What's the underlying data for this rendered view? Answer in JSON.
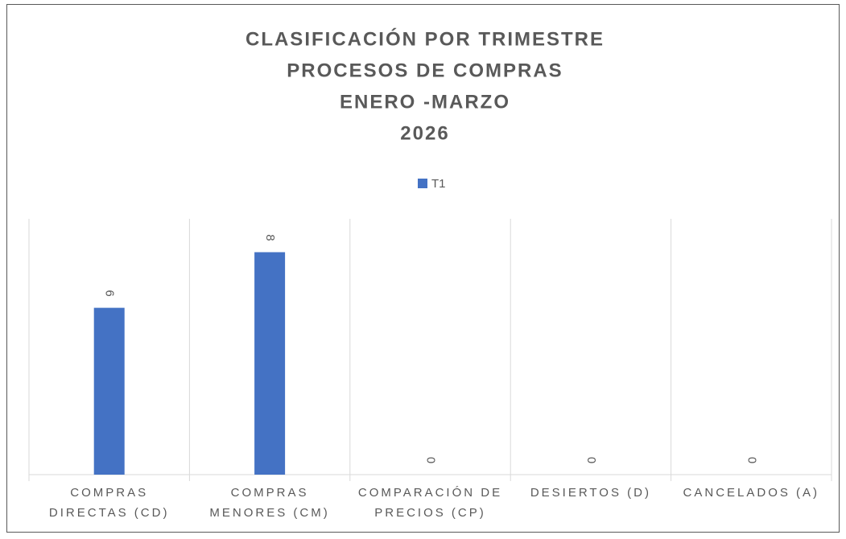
{
  "chart_data": {
    "type": "bar",
    "title": [
      "CLASIFICACIÓN POR TRIMESTRE",
      "PROCESOS DE COMPRAS",
      "ENERO -MARZO",
      "2026"
    ],
    "categories": [
      "COMPRAS DIRECTAS (CD)",
      "COMPRAS MENORES (CM)",
      "COMPARACIÓN DE PRECIOS (CP)",
      "DESIERTOS (D)",
      "CANCELADOS (A)"
    ],
    "series": [
      {
        "name": "T1",
        "color": "#4472c4",
        "values": [
          6,
          8,
          0,
          0,
          0
        ]
      }
    ],
    "legend": "top"
  }
}
